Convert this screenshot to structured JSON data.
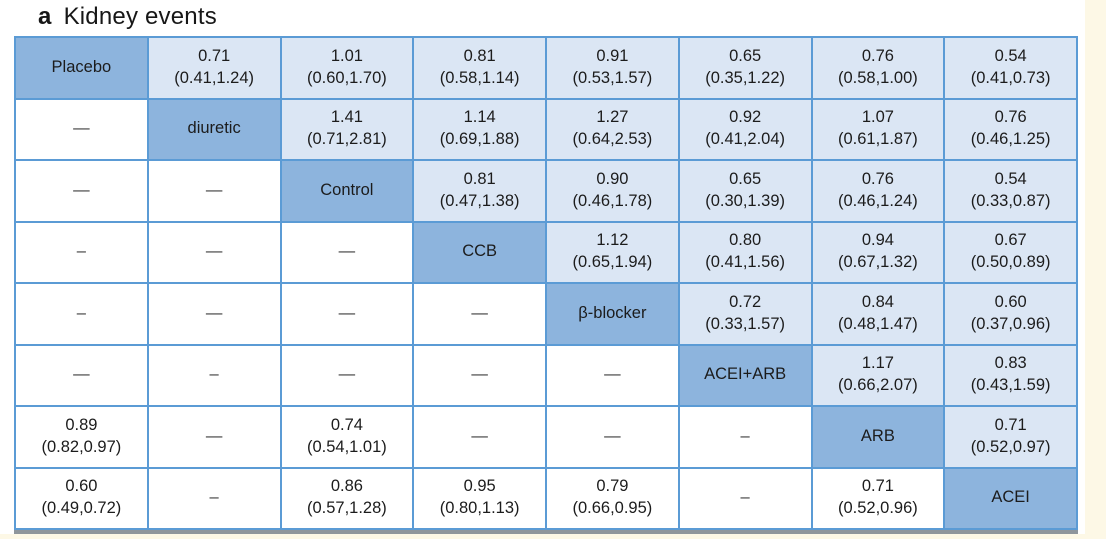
{
  "title": {
    "panel": "a",
    "text": "Kidney events"
  },
  "colors": {
    "diagonal_cell": "#8db4dd",
    "upper_triangle_cell": "#dbe6f4",
    "lower_triangle_cell": "#ffffff",
    "grid_border": "#5b9bd5",
    "text": "#1f1f1f",
    "page_edge": "#fdf8e6",
    "table_shadow": "#8f969c"
  },
  "treatments": [
    "Placebo",
    "diuretic",
    "Control",
    "CCB",
    "β-blocker",
    "ACEI+ARB",
    "ARB",
    "ACEI"
  ],
  "chart_data": {
    "type": "table",
    "title": "a Kidney events",
    "rows": 8,
    "cols": 8
  },
  "grid": {
    "rows": [
      [
        {
          "type": "treatment",
          "label": "Placebo"
        },
        {
          "type": "estimate",
          "est": "0.71",
          "ci": "(0.41,1.24)"
        },
        {
          "type": "estimate",
          "est": "1.01",
          "ci": "(0.60,1.70)"
        },
        {
          "type": "estimate",
          "est": "0.81",
          "ci": "(0.58,1.14)"
        },
        {
          "type": "estimate",
          "est": "0.91",
          "ci": "(0.53,1.57)"
        },
        {
          "type": "estimate",
          "est": "0.65",
          "ci": "(0.35,1.22)"
        },
        {
          "type": "estimate",
          "est": "0.76",
          "ci": "(0.58,1.00)"
        },
        {
          "type": "estimate",
          "est": "0.54",
          "ci": "(0.41,0.73)"
        }
      ],
      [
        {
          "type": "dash",
          "glyph": "—"
        },
        {
          "type": "treatment",
          "label": "diuretic"
        },
        {
          "type": "estimate",
          "est": "1.41",
          "ci": "(0.71,2.81)"
        },
        {
          "type": "estimate",
          "est": "1.14",
          "ci": "(0.69,1.88)"
        },
        {
          "type": "estimate",
          "est": "1.27",
          "ci": "(0.64,2.53)"
        },
        {
          "type": "estimate",
          "est": "0.92",
          "ci": "(0.41,2.04)"
        },
        {
          "type": "estimate",
          "est": "1.07",
          "ci": "(0.61,1.87)"
        },
        {
          "type": "estimate",
          "est": "0.76",
          "ci": "(0.46,1.25)"
        }
      ],
      [
        {
          "type": "dash",
          "glyph": "—"
        },
        {
          "type": "dash",
          "glyph": "—"
        },
        {
          "type": "treatment",
          "label": "Control"
        },
        {
          "type": "estimate",
          "est": "0.81",
          "ci": "(0.47,1.38)"
        },
        {
          "type": "estimate",
          "est": "0.90",
          "ci": "(0.46,1.78)"
        },
        {
          "type": "estimate",
          "est": "0.65",
          "ci": "(0.30,1.39)"
        },
        {
          "type": "estimate",
          "est": "0.76",
          "ci": "(0.46,1.24)"
        },
        {
          "type": "estimate",
          "est": "0.54",
          "ci": "(0.33,0.87)"
        }
      ],
      [
        {
          "type": "dash",
          "glyph": "–"
        },
        {
          "type": "dash",
          "glyph": "—"
        },
        {
          "type": "dash",
          "glyph": "—"
        },
        {
          "type": "treatment",
          "label": "CCB"
        },
        {
          "type": "estimate",
          "est": "1.12",
          "ci": "(0.65,1.94)"
        },
        {
          "type": "estimate",
          "est": "0.80",
          "ci": "(0.41,1.56)"
        },
        {
          "type": "estimate",
          "est": "0.94",
          "ci": "(0.67,1.32)"
        },
        {
          "type": "estimate",
          "est": "0.67",
          "ci": "(0.50,0.89)"
        }
      ],
      [
        {
          "type": "dash",
          "glyph": "–"
        },
        {
          "type": "dash",
          "glyph": "—"
        },
        {
          "type": "dash",
          "glyph": "—"
        },
        {
          "type": "dash",
          "glyph": "—"
        },
        {
          "type": "treatment",
          "label": "β-blocker"
        },
        {
          "type": "estimate",
          "est": "0.72",
          "ci": "(0.33,1.57)"
        },
        {
          "type": "estimate",
          "est": "0.84",
          "ci": "(0.48,1.47)"
        },
        {
          "type": "estimate",
          "est": "0.60",
          "ci": "(0.37,0.96)"
        }
      ],
      [
        {
          "type": "dash",
          "glyph": "—"
        },
        {
          "type": "dash",
          "glyph": "–"
        },
        {
          "type": "dash",
          "glyph": "—"
        },
        {
          "type": "dash",
          "glyph": "—"
        },
        {
          "type": "dash",
          "glyph": "—"
        },
        {
          "type": "treatment",
          "label": "ACEI+ARB"
        },
        {
          "type": "estimate",
          "est": "1.17",
          "ci": "(0.66,2.07)"
        },
        {
          "type": "estimate",
          "est": "0.83",
          "ci": "(0.43,1.59)"
        }
      ],
      [
        {
          "type": "estimate",
          "est": "0.89",
          "ci": "(0.82,0.97)"
        },
        {
          "type": "dash",
          "glyph": "—"
        },
        {
          "type": "estimate",
          "est": "0.74",
          "ci": "(0.54,1.01)"
        },
        {
          "type": "dash",
          "glyph": "—"
        },
        {
          "type": "dash",
          "glyph": "—"
        },
        {
          "type": "dash",
          "glyph": "–"
        },
        {
          "type": "treatment",
          "label": "ARB"
        },
        {
          "type": "estimate",
          "est": "0.71",
          "ci": "(0.52,0.97)"
        }
      ],
      [
        {
          "type": "estimate",
          "est": "0.60",
          "ci": "(0.49,0.72)"
        },
        {
          "type": "dash",
          "glyph": "–"
        },
        {
          "type": "estimate",
          "est": "0.86",
          "ci": "(0.57,1.28)"
        },
        {
          "type": "estimate",
          "est": "0.95",
          "ci": "(0.80,1.13)"
        },
        {
          "type": "estimate",
          "est": "0.79",
          "ci": "(0.66,0.95)"
        },
        {
          "type": "dash",
          "glyph": "–"
        },
        {
          "type": "estimate",
          "est": "0.71",
          "ci": "(0.52,0.96)"
        },
        {
          "type": "treatment",
          "label": "ACEI"
        }
      ]
    ]
  }
}
